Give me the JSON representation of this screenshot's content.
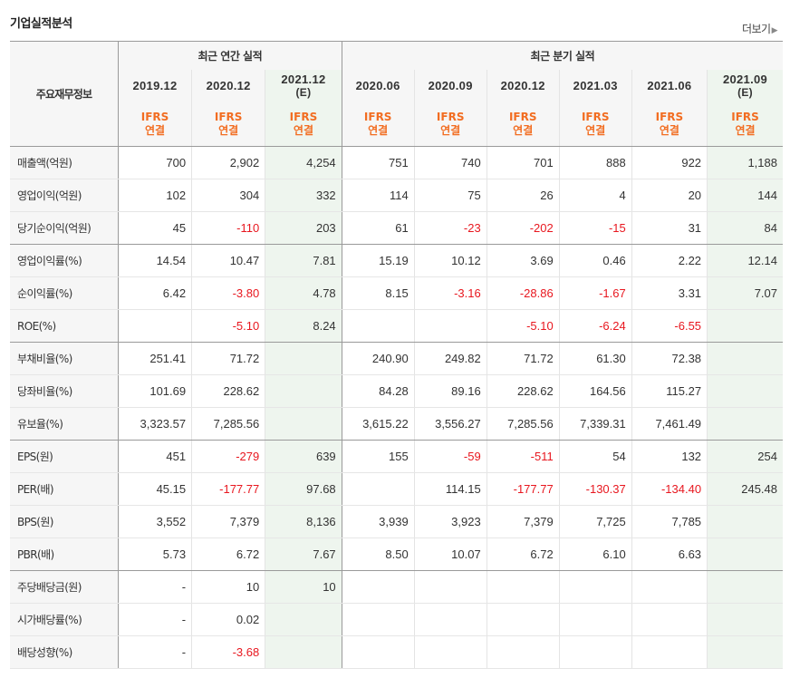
{
  "title": "기업실적분석",
  "more_label": "더보기",
  "header": {
    "label": "주요재무정보",
    "annual_group": "최근 연간 실적",
    "quarter_group": "최근 분기 실적",
    "periods": [
      {
        "date": "2019.12",
        "est": ""
      },
      {
        "date": "2020.12",
        "est": ""
      },
      {
        "date": "2021.12",
        "est": "(E)"
      },
      {
        "date": "2020.06",
        "est": ""
      },
      {
        "date": "2020.09",
        "est": ""
      },
      {
        "date": "2020.12",
        "est": ""
      },
      {
        "date": "2021.03",
        "est": ""
      },
      {
        "date": "2021.06",
        "est": ""
      },
      {
        "date": "2021.09",
        "est": "(E)"
      }
    ],
    "basis_top": "IFRS",
    "basis_bottom": "연결"
  },
  "rows": [
    {
      "label": "매출액(억원)",
      "values": [
        "700",
        "2,902",
        "4,254",
        "751",
        "740",
        "701",
        "888",
        "922",
        "1,188"
      ]
    },
    {
      "label": "영업이익(억원)",
      "values": [
        "102",
        "304",
        "332",
        "114",
        "75",
        "26",
        "4",
        "20",
        "144"
      ]
    },
    {
      "label": "당기순이익(억원)",
      "values": [
        "45",
        "-110",
        "203",
        "61",
        "-23",
        "-202",
        "-15",
        "31",
        "84"
      ]
    },
    {
      "label": "영업이익률(%)",
      "values": [
        "14.54",
        "10.47",
        "7.81",
        "15.19",
        "10.12",
        "3.69",
        "0.46",
        "2.22",
        "12.14"
      ]
    },
    {
      "label": "순이익률(%)",
      "values": [
        "6.42",
        "-3.80",
        "4.78",
        "8.15",
        "-3.16",
        "-28.86",
        "-1.67",
        "3.31",
        "7.07"
      ]
    },
    {
      "label": "ROE(%)",
      "values": [
        "",
        "-5.10",
        "8.24",
        "",
        "",
        "-5.10",
        "-6.24",
        "-6.55",
        ""
      ]
    },
    {
      "label": "부채비율(%)",
      "values": [
        "251.41",
        "71.72",
        "",
        "240.90",
        "249.82",
        "71.72",
        "61.30",
        "72.38",
        ""
      ]
    },
    {
      "label": "당좌비율(%)",
      "values": [
        "101.69",
        "228.62",
        "",
        "84.28",
        "89.16",
        "228.62",
        "164.56",
        "115.27",
        ""
      ]
    },
    {
      "label": "유보율(%)",
      "values": [
        "3,323.57",
        "7,285.56",
        "",
        "3,615.22",
        "3,556.27",
        "7,285.56",
        "7,339.31",
        "7,461.49",
        ""
      ]
    },
    {
      "label": "EPS(원)",
      "values": [
        "451",
        "-279",
        "639",
        "155",
        "-59",
        "-511",
        "54",
        "132",
        "254"
      ]
    },
    {
      "label": "PER(배)",
      "values": [
        "45.15",
        "-177.77",
        "97.68",
        "",
        "114.15",
        "-177.77",
        "-130.37",
        "-134.40",
        "245.48"
      ]
    },
    {
      "label": "BPS(원)",
      "values": [
        "3,552",
        "7,379",
        "8,136",
        "3,939",
        "3,923",
        "7,379",
        "7,725",
        "7,785",
        ""
      ]
    },
    {
      "label": "PBR(배)",
      "values": [
        "5.73",
        "6.72",
        "7.67",
        "8.50",
        "10.07",
        "6.72",
        "6.10",
        "6.63",
        ""
      ]
    },
    {
      "label": "주당배당금(원)",
      "values": [
        "-",
        "10",
        "10",
        "",
        "",
        "",
        "",
        "",
        ""
      ]
    },
    {
      "label": "시가배당률(%)",
      "values": [
        "-",
        "0.02",
        "",
        "",
        "",
        "",
        "",
        "",
        ""
      ]
    },
    {
      "label": "배당성향(%)",
      "values": [
        "-",
        "-3.68",
        "",
        "",
        "",
        "",
        "",
        "",
        ""
      ]
    }
  ],
  "colors": {
    "negative": "#e8171f",
    "ifrs": "#f26d21",
    "estimate_bg": "#eef5ee"
  }
}
